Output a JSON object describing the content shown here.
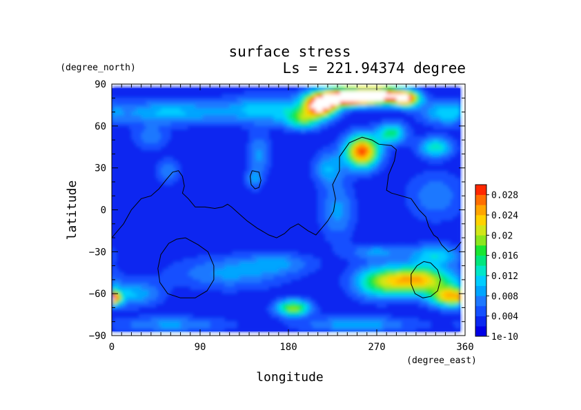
{
  "chart_data": {
    "type": "heatmap",
    "title": "surface stress",
    "subtitle": "Ls = 221.94374 degree",
    "xlabel": "longitude",
    "ylabel": "latitude",
    "xunits": "(degree_east)",
    "yunits": "(degree_north)",
    "xlim": [
      0,
      360
    ],
    "ylim": [
      -90,
      90
    ],
    "data_extent": {
      "lon": [
        0,
        355
      ],
      "lat": [
        -87,
        87
      ]
    },
    "xticks": [
      0,
      90,
      180,
      270,
      360
    ],
    "yticks": [
      -90,
      -60,
      -30,
      0,
      30,
      60,
      90
    ],
    "colorbar": {
      "min": 0,
      "max": 0.03,
      "labels": [
        "1e-10",
        "0.004",
        "0.008",
        "0.012",
        "0.016",
        "0.02",
        "0.024",
        "0.028"
      ],
      "label_values": [
        0,
        0.004,
        0.008,
        0.012,
        0.016,
        0.02,
        0.024,
        0.028
      ],
      "levels": 15,
      "over_color": "#ffffff"
    },
    "colormap": [
      "#0000e6",
      "#0a28f0",
      "#1450ff",
      "#1e78ff",
      "#00a5ff",
      "#00cdff",
      "#00e6c8",
      "#00e67d",
      "#19e632",
      "#8ce61e",
      "#d2e619",
      "#ffd200",
      "#ffa500",
      "#ff6e00",
      "#ff2800"
    ],
    "background_level": 0.0025,
    "features": [
      {
        "lon": 270,
        "lat": 82,
        "dlon": 16,
        "dlat": 4,
        "amp": 0.035
      },
      {
        "lon": 240,
        "lat": 81,
        "dlon": 14,
        "dlat": 4,
        "amp": 0.035
      },
      {
        "lon": 213,
        "lat": 76,
        "dlon": 12,
        "dlat": 6,
        "amp": 0.032
      },
      {
        "lon": 300,
        "lat": 80,
        "dlon": 10,
        "dlat": 4,
        "amp": 0.025
      },
      {
        "lon": 160,
        "lat": 72,
        "dlon": 30,
        "dlat": 7,
        "amp": 0.009
      },
      {
        "lon": 60,
        "lat": 70,
        "dlon": 40,
        "dlat": 6,
        "amp": 0.008
      },
      {
        "lon": 195,
        "lat": 65,
        "dlon": 12,
        "dlat": 5,
        "amp": 0.012
      },
      {
        "lon": 340,
        "lat": 70,
        "dlon": 18,
        "dlat": 6,
        "amp": 0.008
      },
      {
        "lon": 255,
        "lat": 42,
        "dlon": 12,
        "dlat": 8,
        "amp": 0.026
      },
      {
        "lon": 285,
        "lat": 55,
        "dlon": 10,
        "dlat": 5,
        "amp": 0.013
      },
      {
        "lon": 330,
        "lat": 45,
        "dlon": 12,
        "dlat": 5,
        "amp": 0.011
      },
      {
        "lon": 220,
        "lat": 30,
        "dlon": 10,
        "dlat": 8,
        "amp": 0.007
      },
      {
        "lon": 150,
        "lat": 40,
        "dlon": 8,
        "dlat": 10,
        "amp": 0.006
      },
      {
        "lon": 40,
        "lat": 52,
        "dlon": 12,
        "dlat": 6,
        "amp": 0.005
      },
      {
        "lon": 58,
        "lat": 28,
        "dlon": 8,
        "dlat": 6,
        "amp": 0.0055
      },
      {
        "lon": 145,
        "lat": 22,
        "dlon": 6,
        "dlat": 5,
        "amp": 0.0055
      },
      {
        "lon": 230,
        "lat": 0,
        "dlon": 12,
        "dlat": 15,
        "amp": 0.006
      },
      {
        "lon": 330,
        "lat": 10,
        "dlon": 20,
        "dlat": 12,
        "amp": 0.005
      },
      {
        "lon": 310,
        "lat": -50,
        "dlon": 26,
        "dlat": 7,
        "amp": 0.022
      },
      {
        "lon": 345,
        "lat": -62,
        "dlon": 14,
        "dlat": 5,
        "amp": 0.02
      },
      {
        "lon": 270,
        "lat": -52,
        "dlon": 18,
        "dlat": 8,
        "amp": 0.01
      },
      {
        "lon": 330,
        "lat": -32,
        "dlon": 18,
        "dlat": 5,
        "amp": 0.009
      },
      {
        "lon": 185,
        "lat": -70,
        "dlon": 12,
        "dlat": 4,
        "amp": 0.017
      },
      {
        "lon": 2,
        "lat": -63,
        "dlon": 5,
        "dlat": 3,
        "amp": 0.017
      },
      {
        "lon": 25,
        "lat": -60,
        "dlon": 18,
        "dlat": 6,
        "amp": 0.007
      },
      {
        "lon": 120,
        "lat": -45,
        "dlon": 40,
        "dlat": 8,
        "amp": 0.006
      },
      {
        "lon": 170,
        "lat": -38,
        "dlon": 25,
        "dlat": 5,
        "amp": 0.005
      },
      {
        "lon": 270,
        "lat": -30,
        "dlon": 20,
        "dlat": 4,
        "amp": 0.006
      },
      {
        "lon": 60,
        "lat": -82,
        "dlon": 40,
        "dlat": 4,
        "amp": 0.006
      },
      {
        "lon": 250,
        "lat": -82,
        "dlon": 40,
        "dlat": 4,
        "amp": 0.007
      }
    ],
    "contours": [
      [
        [
          0,
          -20
        ],
        [
          12,
          -10
        ],
        [
          20,
          0
        ],
        [
          30,
          8
        ],
        [
          40,
          10
        ],
        [
          48,
          15
        ],
        [
          56,
          22
        ],
        [
          62,
          27
        ],
        [
          68,
          28
        ],
        [
          72,
          24
        ],
        [
          74,
          17
        ],
        [
          72,
          12
        ],
        [
          78,
          8
        ],
        [
          85,
          2
        ],
        [
          95,
          2
        ],
        [
          105,
          1
        ],
        [
          113,
          2
        ],
        [
          118,
          4
        ],
        [
          122,
          2
        ],
        [
          130,
          -3
        ],
        [
          138,
          -8
        ],
        [
          148,
          -13
        ],
        [
          160,
          -18
        ],
        [
          168,
          -20
        ],
        [
          176,
          -17
        ],
        [
          182,
          -13
        ],
        [
          190,
          -10
        ],
        [
          200,
          -15
        ],
        [
          208,
          -18
        ],
        [
          214,
          -13
        ],
        [
          220,
          -8
        ],
        [
          226,
          -1
        ],
        [
          228,
          8
        ],
        [
          225,
          18
        ],
        [
          232,
          28
        ],
        [
          232,
          38
        ],
        [
          242,
          48
        ],
        [
          255,
          52
        ],
        [
          265,
          50
        ],
        [
          272,
          47
        ],
        [
          285,
          46
        ],
        [
          290,
          43
        ],
        [
          288,
          35
        ],
        [
          282,
          25
        ],
        [
          280,
          14
        ],
        [
          285,
          12
        ],
        [
          295,
          10
        ],
        [
          305,
          8
        ],
        [
          313,
          0
        ],
        [
          320,
          -5
        ],
        [
          323,
          -12
        ],
        [
          328,
          -18
        ],
        [
          332,
          -20
        ],
        [
          336,
          -25
        ],
        [
          343,
          -30
        ],
        [
          350,
          -28
        ],
        [
          356,
          -23
        ]
      ],
      [
        [
          143,
          28
        ],
        [
          150,
          27
        ],
        [
          152,
          21
        ],
        [
          150,
          16
        ],
        [
          146,
          15
        ],
        [
          142,
          18
        ],
        [
          141,
          24
        ],
        [
          143,
          28
        ]
      ],
      [
        [
          75,
          -20
        ],
        [
          88,
          -25
        ],
        [
          98,
          -30
        ],
        [
          104,
          -40
        ],
        [
          104,
          -50
        ],
        [
          97,
          -58
        ],
        [
          85,
          -63
        ],
        [
          70,
          -63
        ],
        [
          57,
          -60
        ],
        [
          49,
          -52
        ],
        [
          47,
          -42
        ],
        [
          50,
          -32
        ],
        [
          58,
          -24
        ],
        [
          66,
          -21
        ],
        [
          75,
          -20
        ]
      ],
      [
        [
          325,
          -38
        ],
        [
          332,
          -43
        ],
        [
          335,
          -50
        ],
        [
          332,
          -58
        ],
        [
          325,
          -62
        ],
        [
          317,
          -63
        ],
        [
          309,
          -60
        ],
        [
          305,
          -53
        ],
        [
          305,
          -46
        ],
        [
          311,
          -40
        ],
        [
          318,
          -37
        ],
        [
          325,
          -38
        ]
      ]
    ]
  }
}
